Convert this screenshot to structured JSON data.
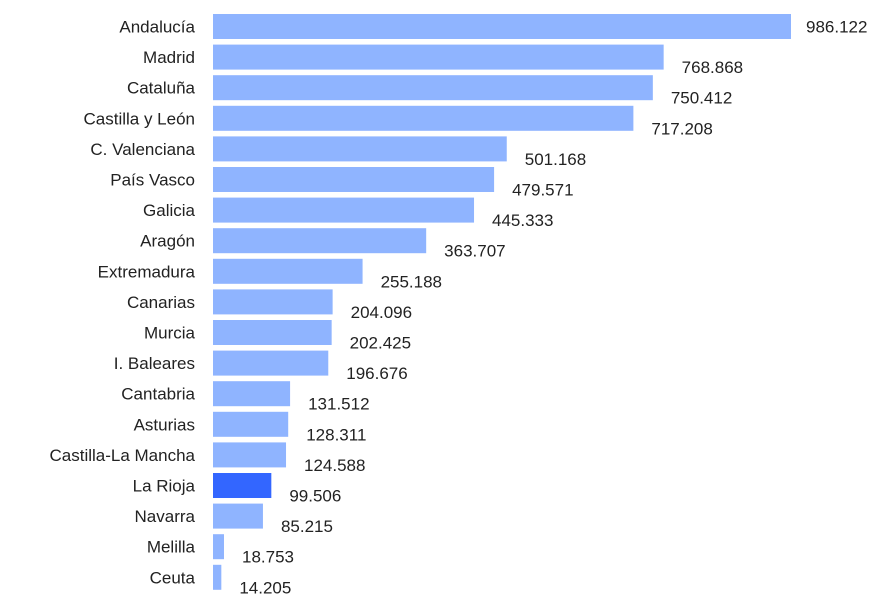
{
  "chart_data": {
    "type": "bar",
    "orientation": "horizontal",
    "categories": [
      "Andalucía",
      "Madrid",
      "Cataluña",
      "Castilla y León",
      "C. Valenciana",
      "País Vasco",
      "Galicia",
      "Aragón",
      "Extremadura",
      "Canarias",
      "Murcia",
      "I. Baleares",
      "Cantabria",
      "Asturias",
      "Castilla-La Mancha",
      "La Rioja",
      "Navarra",
      "Melilla",
      "Ceuta"
    ],
    "values": [
      986122,
      768868,
      750412,
      717208,
      501168,
      479571,
      445333,
      363707,
      255188,
      204096,
      202425,
      196676,
      131512,
      128311,
      124588,
      99506,
      85215,
      18753,
      14205
    ],
    "value_labels": [
      "986.122",
      "768.868",
      "750.412",
      "717.208",
      "501.168",
      "479.571",
      "445.333",
      "363.707",
      "255.188",
      "204.096",
      "202.425",
      "196.676",
      "131.512",
      "128.311",
      "124.588",
      "99.506",
      "85.215",
      "18.753",
      "14.205"
    ],
    "highlight": "La Rioja",
    "colors": {
      "bar": "#8fb4ff",
      "highlight": "#3366ff"
    },
    "xlim": [
      0,
      1000000
    ],
    "grid": false,
    "legend": "none",
    "title": "",
    "xlabel": "",
    "ylabel": ""
  }
}
